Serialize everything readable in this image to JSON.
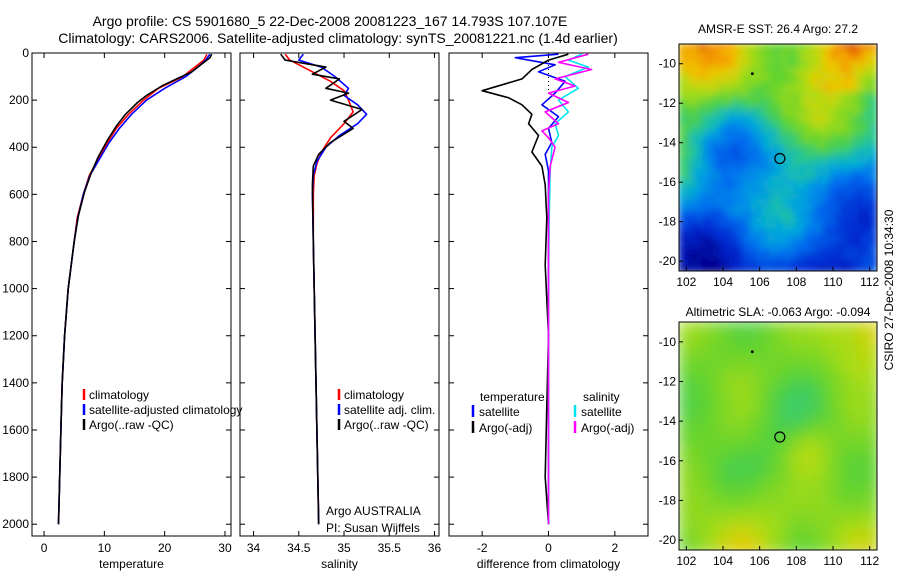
{
  "figure": {
    "title_line1": "Argo profile: CS 5901680_5 22-Dec-2008 20081223_167 14.793S 107.107E",
    "title_line2": "Climatology: CARS2006. Satellite-adjusted climatology: synTS_20081221.nc (1.4d earlier)",
    "side_label": "CSIRO 27-Dec-2008 10:34:30",
    "credit_line1": "Argo AUSTRALIA",
    "credit_line2": "PI: Susan Wijffels"
  },
  "colors": {
    "climatology": "#ff0000",
    "satellite": "#0000ff",
    "argo": "#000000",
    "salinity_satellite": "#00e5ee",
    "salinity_argo": "#ff00ff"
  },
  "chart_data": [
    {
      "type": "line",
      "id": "temperature",
      "xlabel": "temperature",
      "ylabel": "",
      "xlim": [
        -2,
        31
      ],
      "ylim": [
        2050,
        0
      ],
      "xticks": [
        0,
        10,
        20,
        30
      ],
      "yticks": [
        0,
        200,
        400,
        600,
        800,
        1000,
        1200,
        1400,
        1600,
        1800,
        2000
      ],
      "legend": [
        "climatology",
        "satellite-adjusted climatology",
        "Argo(..raw -QC)"
      ],
      "series": [
        {
          "name": "climatology",
          "color_key": "climatology",
          "points": [
            [
              27.0,
              5
            ],
            [
              26.5,
              30
            ],
            [
              25.0,
              60
            ],
            [
              23.0,
              100
            ],
            [
              19.0,
              150
            ],
            [
              16.5,
              200
            ],
            [
              14.0,
              260
            ],
            [
              12.0,
              320
            ],
            [
              10.5,
              380
            ],
            [
              9.0,
              450
            ],
            [
              7.5,
              520
            ],
            [
              6.5,
              600
            ],
            [
              5.5,
              700
            ],
            [
              5.0,
              800
            ],
            [
              4.5,
              900
            ],
            [
              4.0,
              1000
            ],
            [
              3.7,
              1100
            ],
            [
              3.4,
              1200
            ],
            [
              3.2,
              1300
            ],
            [
              3.0,
              1400
            ],
            [
              2.9,
              1500
            ],
            [
              2.8,
              1600
            ],
            [
              2.7,
              1700
            ],
            [
              2.6,
              1800
            ],
            [
              2.5,
              1900
            ],
            [
              2.4,
              2000
            ]
          ]
        },
        {
          "name": "satellite-adjusted climatology",
          "color_key": "satellite",
          "points": [
            [
              27.5,
              5
            ],
            [
              26.8,
              30
            ],
            [
              25.5,
              60
            ],
            [
              23.5,
              100
            ],
            [
              20.0,
              150
            ],
            [
              17.0,
              200
            ],
            [
              14.5,
              260
            ],
            [
              12.5,
              320
            ],
            [
              10.8,
              380
            ],
            [
              9.2,
              450
            ],
            [
              7.6,
              520
            ],
            [
              6.5,
              600
            ],
            [
              5.6,
              700
            ],
            [
              5.0,
              800
            ],
            [
              4.5,
              900
            ],
            [
              4.0,
              1000
            ],
            [
              3.7,
              1100
            ],
            [
              3.4,
              1200
            ],
            [
              3.2,
              1300
            ],
            [
              3.0,
              1400
            ],
            [
              2.9,
              1500
            ],
            [
              2.8,
              1600
            ],
            [
              2.7,
              1700
            ],
            [
              2.6,
              1800
            ],
            [
              2.5,
              1900
            ],
            [
              2.4,
              2000
            ]
          ]
        },
        {
          "name": "Argo(..raw -QC)",
          "color_key": "argo",
          "points": [
            [
              27.8,
              5
            ],
            [
              27.5,
              20
            ],
            [
              26.0,
              50
            ],
            [
              24.5,
              80
            ],
            [
              22.0,
              110
            ],
            [
              19.5,
              140
            ],
            [
              17.0,
              180
            ],
            [
              15.5,
              210
            ],
            [
              13.5,
              260
            ],
            [
              12.0,
              310
            ],
            [
              10.5,
              370
            ],
            [
              9.0,
              440
            ],
            [
              7.8,
              510
            ],
            [
              6.7,
              590
            ],
            [
              5.7,
              690
            ],
            [
              5.0,
              800
            ],
            [
              4.5,
              900
            ],
            [
              4.0,
              1000
            ],
            [
              3.7,
              1100
            ],
            [
              3.4,
              1200
            ],
            [
              3.2,
              1300
            ],
            [
              3.0,
              1400
            ],
            [
              2.9,
              1500
            ],
            [
              2.8,
              1600
            ],
            [
              2.7,
              1700
            ],
            [
              2.6,
              1800
            ],
            [
              2.5,
              1900
            ],
            [
              2.4,
              2000
            ]
          ]
        }
      ]
    },
    {
      "type": "line",
      "id": "salinity",
      "xlabel": "salinity",
      "ylabel": "",
      "xlim": [
        33.85,
        36.05
      ],
      "ylim": [
        2050,
        0
      ],
      "xticks": [
        34,
        34.5,
        35,
        35.5,
        36
      ],
      "yticks": [
        0,
        200,
        400,
        600,
        800,
        1000,
        1200,
        1400,
        1600,
        1800,
        2000
      ],
      "legend": [
        "climatology",
        "satellite adj. clim.",
        "Argo(..raw -QC)"
      ],
      "series": [
        {
          "name": "climatology",
          "color_key": "climatology",
          "points": [
            [
              34.35,
              5
            ],
            [
              34.4,
              30
            ],
            [
              34.55,
              60
            ],
            [
              34.7,
              90
            ],
            [
              34.85,
              120
            ],
            [
              35.0,
              160
            ],
            [
              35.05,
              200
            ],
            [
              35.1,
              250
            ],
            [
              35.0,
              300
            ],
            [
              34.85,
              360
            ],
            [
              34.75,
              420
            ],
            [
              34.7,
              470
            ],
            [
              34.67,
              520
            ],
            [
              34.66,
              600
            ],
            [
              34.66,
              800
            ],
            [
              34.67,
              1000
            ],
            [
              34.68,
              1200
            ],
            [
              34.69,
              1400
            ],
            [
              34.7,
              1600
            ],
            [
              34.71,
              1800
            ],
            [
              34.72,
              2000
            ]
          ]
        },
        {
          "name": "satellite adj. clim.",
          "color_key": "satellite",
          "points": [
            [
              34.55,
              5
            ],
            [
              34.5,
              30
            ],
            [
              34.75,
              60
            ],
            [
              34.9,
              100
            ],
            [
              35.05,
              150
            ],
            [
              35.0,
              180
            ],
            [
              35.15,
              220
            ],
            [
              35.25,
              260
            ],
            [
              35.15,
              300
            ],
            [
              34.95,
              350
            ],
            [
              34.8,
              400
            ],
            [
              34.7,
              460
            ],
            [
              34.66,
              520
            ],
            [
              34.65,
              600
            ],
            [
              34.66,
              800
            ],
            [
              34.67,
              1000
            ],
            [
              34.68,
              1200
            ],
            [
              34.69,
              1400
            ],
            [
              34.7,
              1600
            ],
            [
              34.71,
              1800
            ],
            [
              34.72,
              2000
            ]
          ]
        },
        {
          "name": "Argo(..raw -QC)",
          "color_key": "argo",
          "points": [
            [
              34.3,
              5
            ],
            [
              34.35,
              30
            ],
            [
              34.5,
              40
            ],
            [
              34.8,
              60
            ],
            [
              34.65,
              90
            ],
            [
              34.95,
              110
            ],
            [
              34.8,
              150
            ],
            [
              35.05,
              170
            ],
            [
              34.85,
              200
            ],
            [
              35.2,
              240
            ],
            [
              35.0,
              290
            ],
            [
              35.1,
              320
            ],
            [
              34.85,
              380
            ],
            [
              34.72,
              430
            ],
            [
              34.66,
              480
            ],
            [
              34.65,
              560
            ],
            [
              34.66,
              800
            ],
            [
              34.67,
              1000
            ],
            [
              34.68,
              1200
            ],
            [
              34.69,
              1400
            ],
            [
              34.7,
              1600
            ],
            [
              34.71,
              1800
            ],
            [
              34.72,
              2000
            ]
          ]
        }
      ]
    },
    {
      "type": "line",
      "id": "difference",
      "xlabel": "difference from climatology",
      "ylabel": "",
      "xlim": [
        -3,
        3
      ],
      "ylim": [
        2050,
        0
      ],
      "xticks": [
        -2,
        0,
        2
      ],
      "yticks": [
        0,
        200,
        400,
        600,
        800,
        1000,
        1200,
        1400,
        1600,
        1800,
        2000
      ],
      "legend_groups": [
        "temperature",
        "salinity"
      ],
      "legend": [
        "satellite",
        "Argo(-adj)",
        "satellite",
        "Argo(-adj)"
      ],
      "series": [
        {
          "name": "satellite",
          "group": "temperature",
          "color_key": "satellite",
          "points": [
            [
              0.3,
              5
            ],
            [
              -1.0,
              20
            ],
            [
              0.2,
              50
            ],
            [
              -0.3,
              80
            ],
            [
              0.5,
              120
            ],
            [
              0.2,
              170
            ],
            [
              -0.2,
              220
            ],
            [
              0.3,
              270
            ],
            [
              0.0,
              320
            ],
            [
              0.1,
              380
            ],
            [
              -0.1,
              430
            ],
            [
              0.0,
              500
            ],
            [
              0.0,
              700
            ],
            [
              0.0,
              1000
            ],
            [
              0.0,
              1500
            ],
            [
              0.0,
              2000
            ]
          ]
        },
        {
          "name": "Argo(-adj)",
          "group": "temperature",
          "color_key": "argo",
          "points": [
            [
              0.6,
              5
            ],
            [
              0.0,
              30
            ],
            [
              -0.5,
              70
            ],
            [
              -0.8,
              110
            ],
            [
              -2.0,
              160
            ],
            [
              -1.2,
              190
            ],
            [
              -0.8,
              220
            ],
            [
              -0.5,
              260
            ],
            [
              -0.6,
              300
            ],
            [
              -0.3,
              350
            ],
            [
              -0.5,
              420
            ],
            [
              -0.2,
              480
            ],
            [
              -0.1,
              560
            ],
            [
              -0.05,
              700
            ],
            [
              -0.1,
              900
            ],
            [
              0.0,
              1200
            ],
            [
              -0.05,
              1500
            ],
            [
              -0.1,
              1800
            ],
            [
              0.0,
              2000
            ]
          ]
        },
        {
          "name": "satellite",
          "group": "salinity",
          "color_key": "salinity_satellite",
          "points": [
            [
              1.0,
              5
            ],
            [
              0.6,
              30
            ],
            [
              1.2,
              60
            ],
            [
              0.5,
              100
            ],
            [
              0.9,
              150
            ],
            [
              0.3,
              200
            ],
            [
              0.6,
              250
            ],
            [
              0.2,
              300
            ],
            [
              0.3,
              350
            ],
            [
              0.1,
              400
            ],
            [
              0.05,
              500
            ],
            [
              0.02,
              700
            ],
            [
              0.0,
              1000
            ],
            [
              0.0,
              1500
            ],
            [
              0.0,
              2000
            ]
          ]
        },
        {
          "name": "Argo(-adj)",
          "group": "salinity",
          "color_key": "salinity_argo",
          "points": [
            [
              1.2,
              5
            ],
            [
              0.3,
              40
            ],
            [
              1.3,
              70
            ],
            [
              0.2,
              110
            ],
            [
              0.8,
              140
            ],
            [
              0.0,
              170
            ],
            [
              0.6,
              210
            ],
            [
              -0.1,
              250
            ],
            [
              0.3,
              300
            ],
            [
              -0.2,
              330
            ],
            [
              0.0,
              360
            ],
            [
              0.2,
              400
            ],
            [
              0.05,
              480
            ],
            [
              0.0,
              600
            ],
            [
              0.0,
              1000
            ],
            [
              0.0,
              1500
            ],
            [
              0.0,
              2000
            ]
          ]
        }
      ]
    },
    {
      "type": "heatmap",
      "id": "sst_map",
      "title": "AMSR-E SST: 26.4 Argo: 27.2",
      "xlim": [
        101.6,
        112.4
      ],
      "ylim": [
        -20.5,
        -9.0
      ],
      "xticks": [
        102,
        104,
        106,
        108,
        110,
        112
      ],
      "yticks": [
        -10,
        -12,
        -14,
        -16,
        -18,
        -20
      ],
      "profile_marker": [
        107.1,
        -14.8
      ],
      "previous_marker": [
        105.6,
        -10.5
      ]
    },
    {
      "type": "heatmap",
      "id": "sla_map",
      "title": "Altimetric SLA: -0.063 Argo: -0.094",
      "xlim": [
        101.6,
        112.4
      ],
      "ylim": [
        -20.5,
        -9.0
      ],
      "xticks": [
        102,
        104,
        106,
        108,
        110,
        112
      ],
      "yticks": [
        -10,
        -12,
        -14,
        -16,
        -18,
        -20
      ],
      "profile_marker": [
        107.1,
        -14.8
      ],
      "previous_marker": [
        105.6,
        -10.5
      ]
    }
  ]
}
